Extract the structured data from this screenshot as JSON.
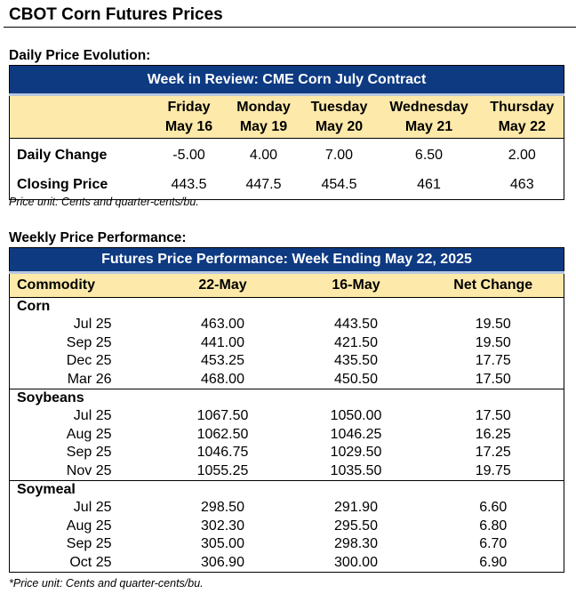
{
  "title": "CBOT Corn Futures Prices",
  "daily": {
    "section_label": "Daily Price Evolution:",
    "banner": "Week in Review: CME Corn July Contract",
    "days": [
      {
        "day": "Friday",
        "date": "May 16"
      },
      {
        "day": "Monday",
        "date": "May 19"
      },
      {
        "day": "Tuesday",
        "date": "May 20"
      },
      {
        "day": "Wednesday",
        "date": "May 21"
      },
      {
        "day": "Thursday",
        "date": "May 22"
      }
    ],
    "rows": [
      {
        "label": "Daily Change",
        "values": [
          "-5.00",
          "4.00",
          "7.00",
          "6.50",
          "2.00"
        ]
      },
      {
        "label": "Closing Price",
        "values": [
          "443.5",
          "447.5",
          "454.5",
          "461",
          "463"
        ]
      }
    ],
    "note": "Price unit: Cents and quarter-cents/bu."
  },
  "weekly": {
    "section_label": "Weekly Price Performance:",
    "banner": "Futures Price Performance: Week Ending May 22, 2025",
    "columns": [
      "Commodity",
      "22-May",
      "16-May",
      "Net Change"
    ],
    "groups": [
      {
        "name": "Corn",
        "rows": [
          [
            "Jul 25",
            "463.00",
            "443.50",
            "19.50"
          ],
          [
            "Sep 25",
            "441.00",
            "421.50",
            "19.50"
          ],
          [
            "Dec 25",
            "453.25",
            "435.50",
            "17.75"
          ],
          [
            "Mar 26",
            "468.00",
            "450.50",
            "17.50"
          ]
        ]
      },
      {
        "name": "Soybeans",
        "rows": [
          [
            "Jul 25",
            "1067.50",
            "1050.00",
            "17.50"
          ],
          [
            "Aug 25",
            "1062.50",
            "1046.25",
            "16.25"
          ],
          [
            "Sep 25",
            "1046.75",
            "1029.50",
            "17.25"
          ],
          [
            "Nov 25",
            "1055.25",
            "1035.50",
            "19.75"
          ]
        ]
      },
      {
        "name": "Soymeal",
        "rows": [
          [
            "Jul 25",
            "298.50",
            "291.90",
            "6.60"
          ],
          [
            "Aug 25",
            "302.30",
            "295.50",
            "6.80"
          ],
          [
            "Sep 25",
            "305.00",
            "298.30",
            "6.70"
          ],
          [
            "Oct 25",
            "306.90",
            "300.00",
            "6.90"
          ]
        ]
      }
    ],
    "note": "*Price unit: Cents and quarter-cents/bu."
  },
  "colors": {
    "banner": "#0e3a82",
    "header": "#fde9a9"
  }
}
